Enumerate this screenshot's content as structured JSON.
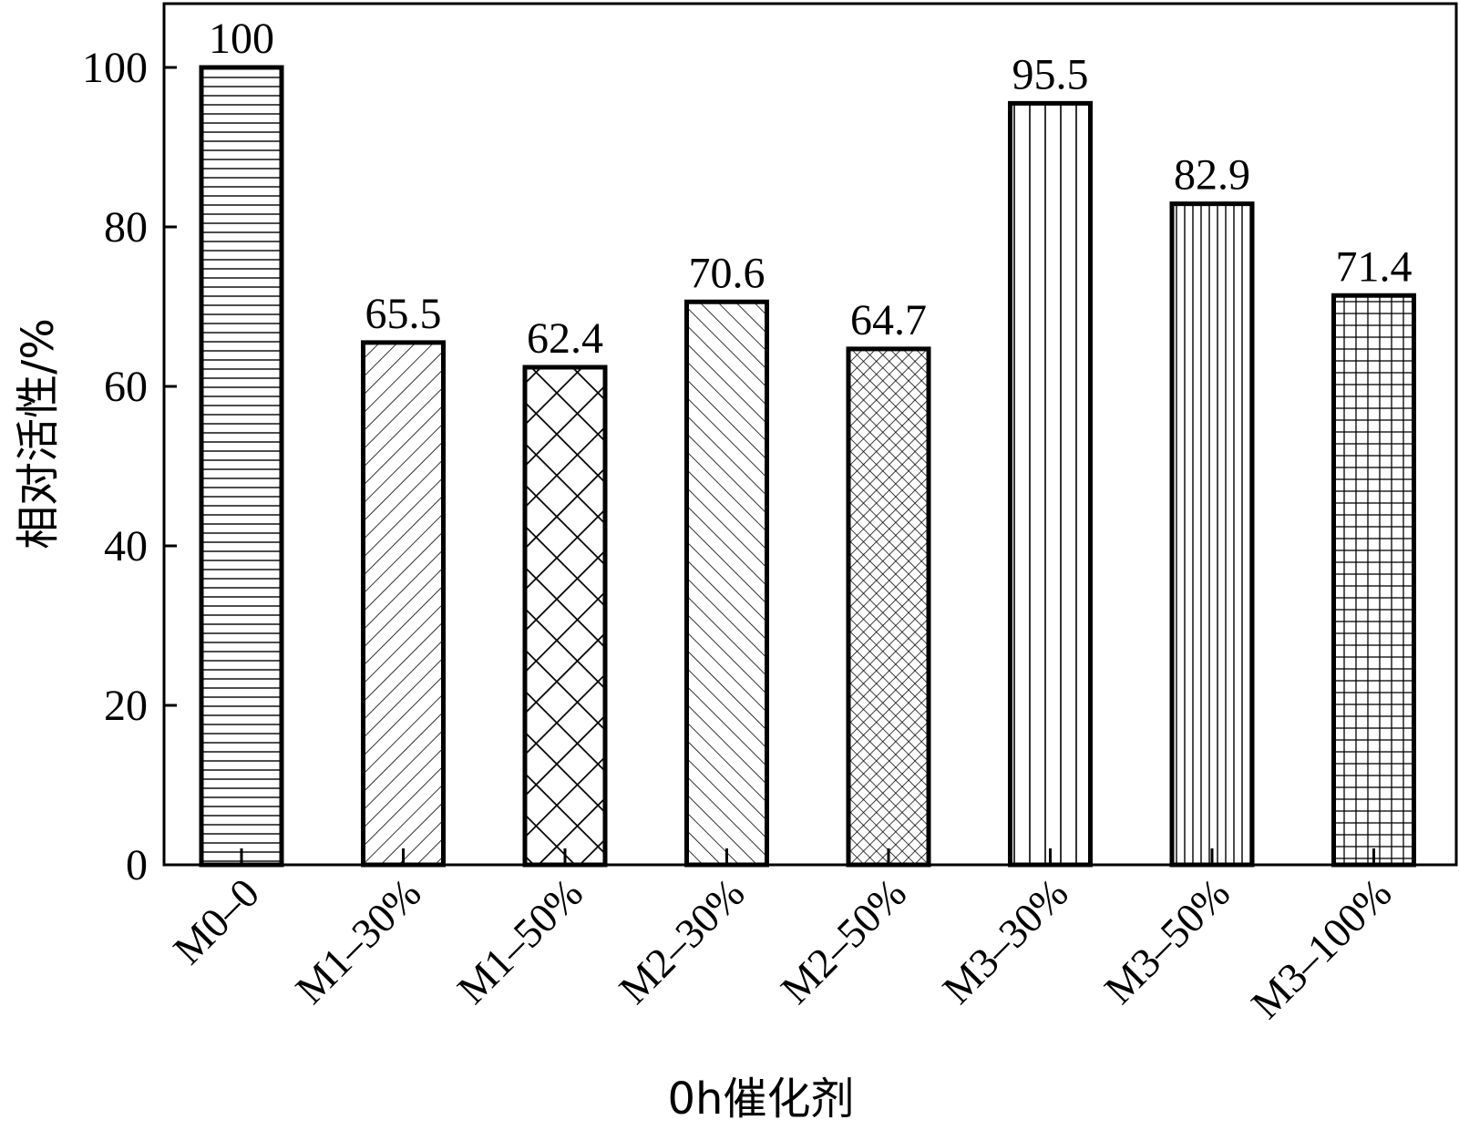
{
  "chart_data": {
    "type": "bar",
    "categories": [
      "M0–0",
      "M1–30%",
      "M1–50%",
      "M2–30%",
      "M2–50%",
      "M3–30%",
      "M3–50%",
      "M3–100%"
    ],
    "values": [
      100,
      65.5,
      62.4,
      70.6,
      64.7,
      95.5,
      82.9,
      71.4
    ],
    "data_labels": [
      "100",
      "65.5",
      "62.4",
      "70.6",
      "64.7",
      "95.5",
      "82.9",
      "71.4"
    ],
    "patterns": [
      "horizontal-lines",
      "diagonal-lines",
      "diagonal-crosshatch",
      "back-diagonal-lines",
      "fine-crosshatch",
      "vertical-lines",
      "fine-vertical-lines",
      "grid"
    ],
    "xlabel": "0h催化剂",
    "ylabel": "相对活性/%",
    "ylim": [
      0,
      108
    ],
    "yticks": [
      0,
      20,
      40,
      60,
      80,
      100
    ],
    "ytick_labels": [
      "0",
      "20",
      "40",
      "60",
      "80",
      "100"
    ],
    "grid": false,
    "legend": "none",
    "colors": {
      "bar_stroke": "#000000",
      "bar_fill": "#ffffff",
      "background": "#ffffff"
    }
  }
}
